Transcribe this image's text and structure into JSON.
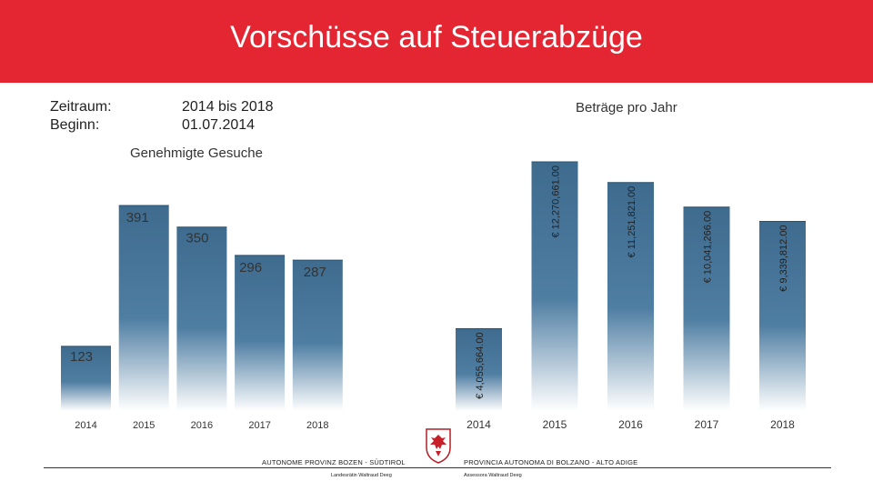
{
  "title": "Vorschüsse auf Steuerabzüge",
  "info": {
    "period_label": "Zeitraum:",
    "start_label": "Beginn:",
    "period_value": "2014  bis 2018",
    "start_value": "01.07.2014"
  },
  "chart_data": [
    {
      "type": "bar",
      "title": "Genehmigte Gesuche",
      "categories": [
        "2014",
        "2015",
        "2016",
        "2017",
        "2018"
      ],
      "values": [
        123,
        391,
        350,
        296,
        287
      ],
      "value_labels": [
        "123",
        "391",
        "350",
        "296",
        "287"
      ],
      "ylim": [
        0,
        450
      ],
      "grid": false
    },
    {
      "type": "bar",
      "title": "Beträge pro Jahr",
      "categories": [
        "2014",
        "2015",
        "2016",
        "2017",
        "2018"
      ],
      "values": [
        4055664,
        12270661,
        11251821,
        10041266,
        9339812
      ],
      "value_labels": [
        "€ 4,055,664.00",
        "€ 12,270,661.00",
        "€ 11,251,821.00",
        "€ 10,041,266.00",
        "€ 9,339,812.00"
      ],
      "ylim": [
        0,
        12800000
      ],
      "grid": false
    }
  ],
  "footer": {
    "left_org": "AUTONOME PROVINZ BOZEN - SÜDTIROL",
    "right_org": "PROVINCIA AUTONOMA DI BOLZANO - ALTO ADIGE",
    "left_person": "Landesrätin Waltraud Deeg",
    "right_person": "Assessora Waltraud Deeg"
  },
  "colors": {
    "header": "#e42532",
    "bar_top": "#3e6b8e",
    "bar_bottom": "#ffffff"
  },
  "icons": [
    "coat-of-arms-icon"
  ]
}
